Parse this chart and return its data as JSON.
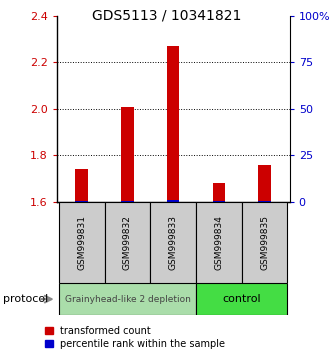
{
  "title": "GDS5113 / 10341821",
  "samples": [
    "GSM999831",
    "GSM999832",
    "GSM999833",
    "GSM999834",
    "GSM999835"
  ],
  "red_values": [
    1.74,
    2.01,
    2.27,
    1.68,
    1.76
  ],
  "blue_values": [
    1.603,
    1.605,
    1.606,
    1.602,
    1.603
  ],
  "ylim": [
    1.6,
    2.4
  ],
  "yticks_left": [
    1.6,
    1.8,
    2.0,
    2.2,
    2.4
  ],
  "yticks_right": [
    0,
    25,
    50,
    75,
    100
  ],
  "ytick_labels_right": [
    "0",
    "25",
    "50",
    "75",
    "100%"
  ],
  "left_color": "#cc0000",
  "right_color": "#0000cc",
  "group1_label": "Grainyhead-like 2 depletion",
  "group2_label": "control",
  "group1_bg": "#aaddaa",
  "group2_bg": "#44dd44",
  "sample_box_bg": "#cccccc",
  "protocol_label": "protocol",
  "legend_red_label": "transformed count",
  "legend_blue_label": "percentile rank within the sample"
}
